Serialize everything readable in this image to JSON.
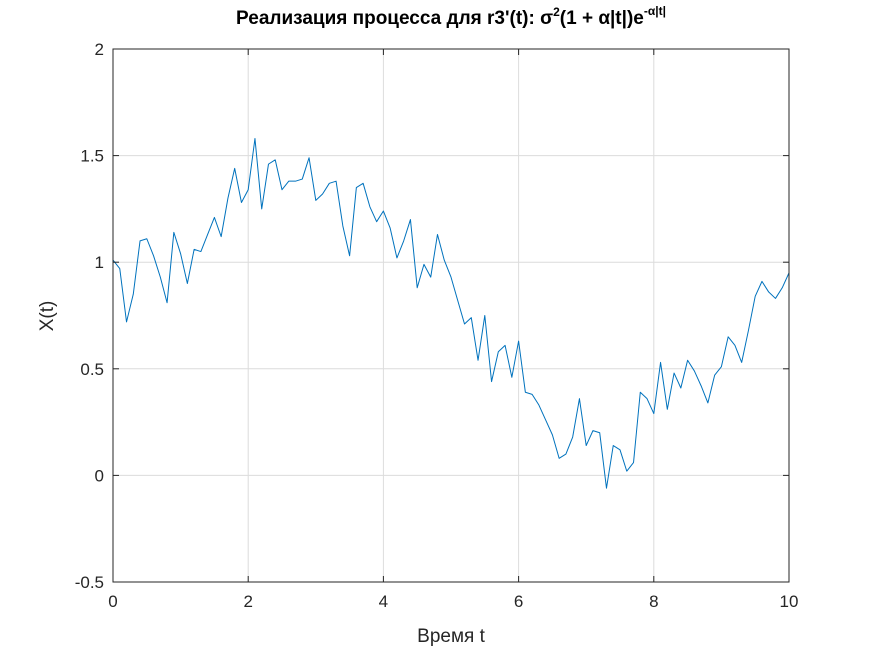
{
  "chart_data": {
    "type": "line",
    "title_main": "Реализация процесса для r3'(t): σ",
    "title_sup1": "2",
    "title_mid": "(1 + α|t|)e",
    "title_sup2": "-α|t|",
    "xlabel": "Время t",
    "ylabel": "X(t)",
    "xlim": [
      0,
      10
    ],
    "ylim": [
      -0.5,
      2
    ],
    "xticks": [
      0,
      2,
      4,
      6,
      8,
      10
    ],
    "xtick_labels": [
      "0",
      "2",
      "4",
      "6",
      "8",
      "10"
    ],
    "yticks": [
      -0.5,
      0,
      0.5,
      1,
      1.5,
      2
    ],
    "ytick_labels": [
      "-0.5",
      "0",
      "0.5",
      "1",
      "1.5",
      "2"
    ],
    "grid": true,
    "line_color": "#0072BD",
    "series": [
      {
        "x": [
          0,
          0.1,
          0.2,
          0.3,
          0.4,
          0.5,
          0.6,
          0.7,
          0.8,
          0.9,
          1.0,
          1.1,
          1.2,
          1.3,
          1.4,
          1.5,
          1.6,
          1.7,
          1.8,
          1.9,
          2.0,
          2.1,
          2.2,
          2.3,
          2.4,
          2.5,
          2.6,
          2.7,
          2.8,
          2.9,
          3.0,
          3.1,
          3.2,
          3.3,
          3.4,
          3.5,
          3.6,
          3.7,
          3.8,
          3.9,
          4.0,
          4.1,
          4.2,
          4.3,
          4.4,
          4.5,
          4.6,
          4.7,
          4.8,
          4.9,
          5.0,
          5.1,
          5.2,
          5.3,
          5.4,
          5.5,
          5.6,
          5.7,
          5.8,
          5.9,
          6.0,
          6.1,
          6.2,
          6.3,
          6.4,
          6.5,
          6.6,
          6.7,
          6.8,
          6.9,
          7.0,
          7.1,
          7.2,
          7.3,
          7.4,
          7.5,
          7.6,
          7.7,
          7.8,
          7.9,
          8.0,
          8.1,
          8.2,
          8.3,
          8.4,
          8.5,
          8.6,
          8.7,
          8.8,
          8.9,
          9.0,
          9.1,
          9.2,
          9.3,
          9.4,
          9.5,
          9.6,
          9.7,
          9.8,
          9.9,
          10.0
        ],
        "y": [
          1.01,
          0.97,
          0.72,
          0.85,
          1.1,
          1.11,
          1.03,
          0.93,
          0.81,
          1.14,
          1.04,
          0.9,
          1.06,
          1.05,
          1.13,
          1.21,
          1.12,
          1.3,
          1.44,
          1.28,
          1.34,
          1.58,
          1.25,
          1.46,
          1.48,
          1.34,
          1.38,
          1.38,
          1.39,
          1.49,
          1.29,
          1.32,
          1.37,
          1.38,
          1.17,
          1.03,
          1.35,
          1.37,
          1.26,
          1.19,
          1.24,
          1.16,
          1.02,
          1.1,
          1.2,
          0.88,
          0.99,
          0.93,
          1.13,
          1.01,
          0.93,
          0.82,
          0.71,
          0.74,
          0.54,
          0.75,
          0.44,
          0.58,
          0.61,
          0.46,
          0.63,
          0.39,
          0.38,
          0.33,
          0.26,
          0.19,
          0.08,
          0.1,
          0.18,
          0.36,
          0.14,
          0.21,
          0.2,
          -0.06,
          0.14,
          0.12,
          0.02,
          0.06,
          0.39,
          0.36,
          0.29,
          0.53,
          0.31,
          0.48,
          0.41,
          0.54,
          0.49,
          0.42,
          0.34,
          0.47,
          0.51,
          0.65,
          0.61,
          0.53,
          0.68,
          0.84,
          0.91,
          0.86,
          0.83,
          0.88,
          0.95
        ]
      }
    ]
  }
}
